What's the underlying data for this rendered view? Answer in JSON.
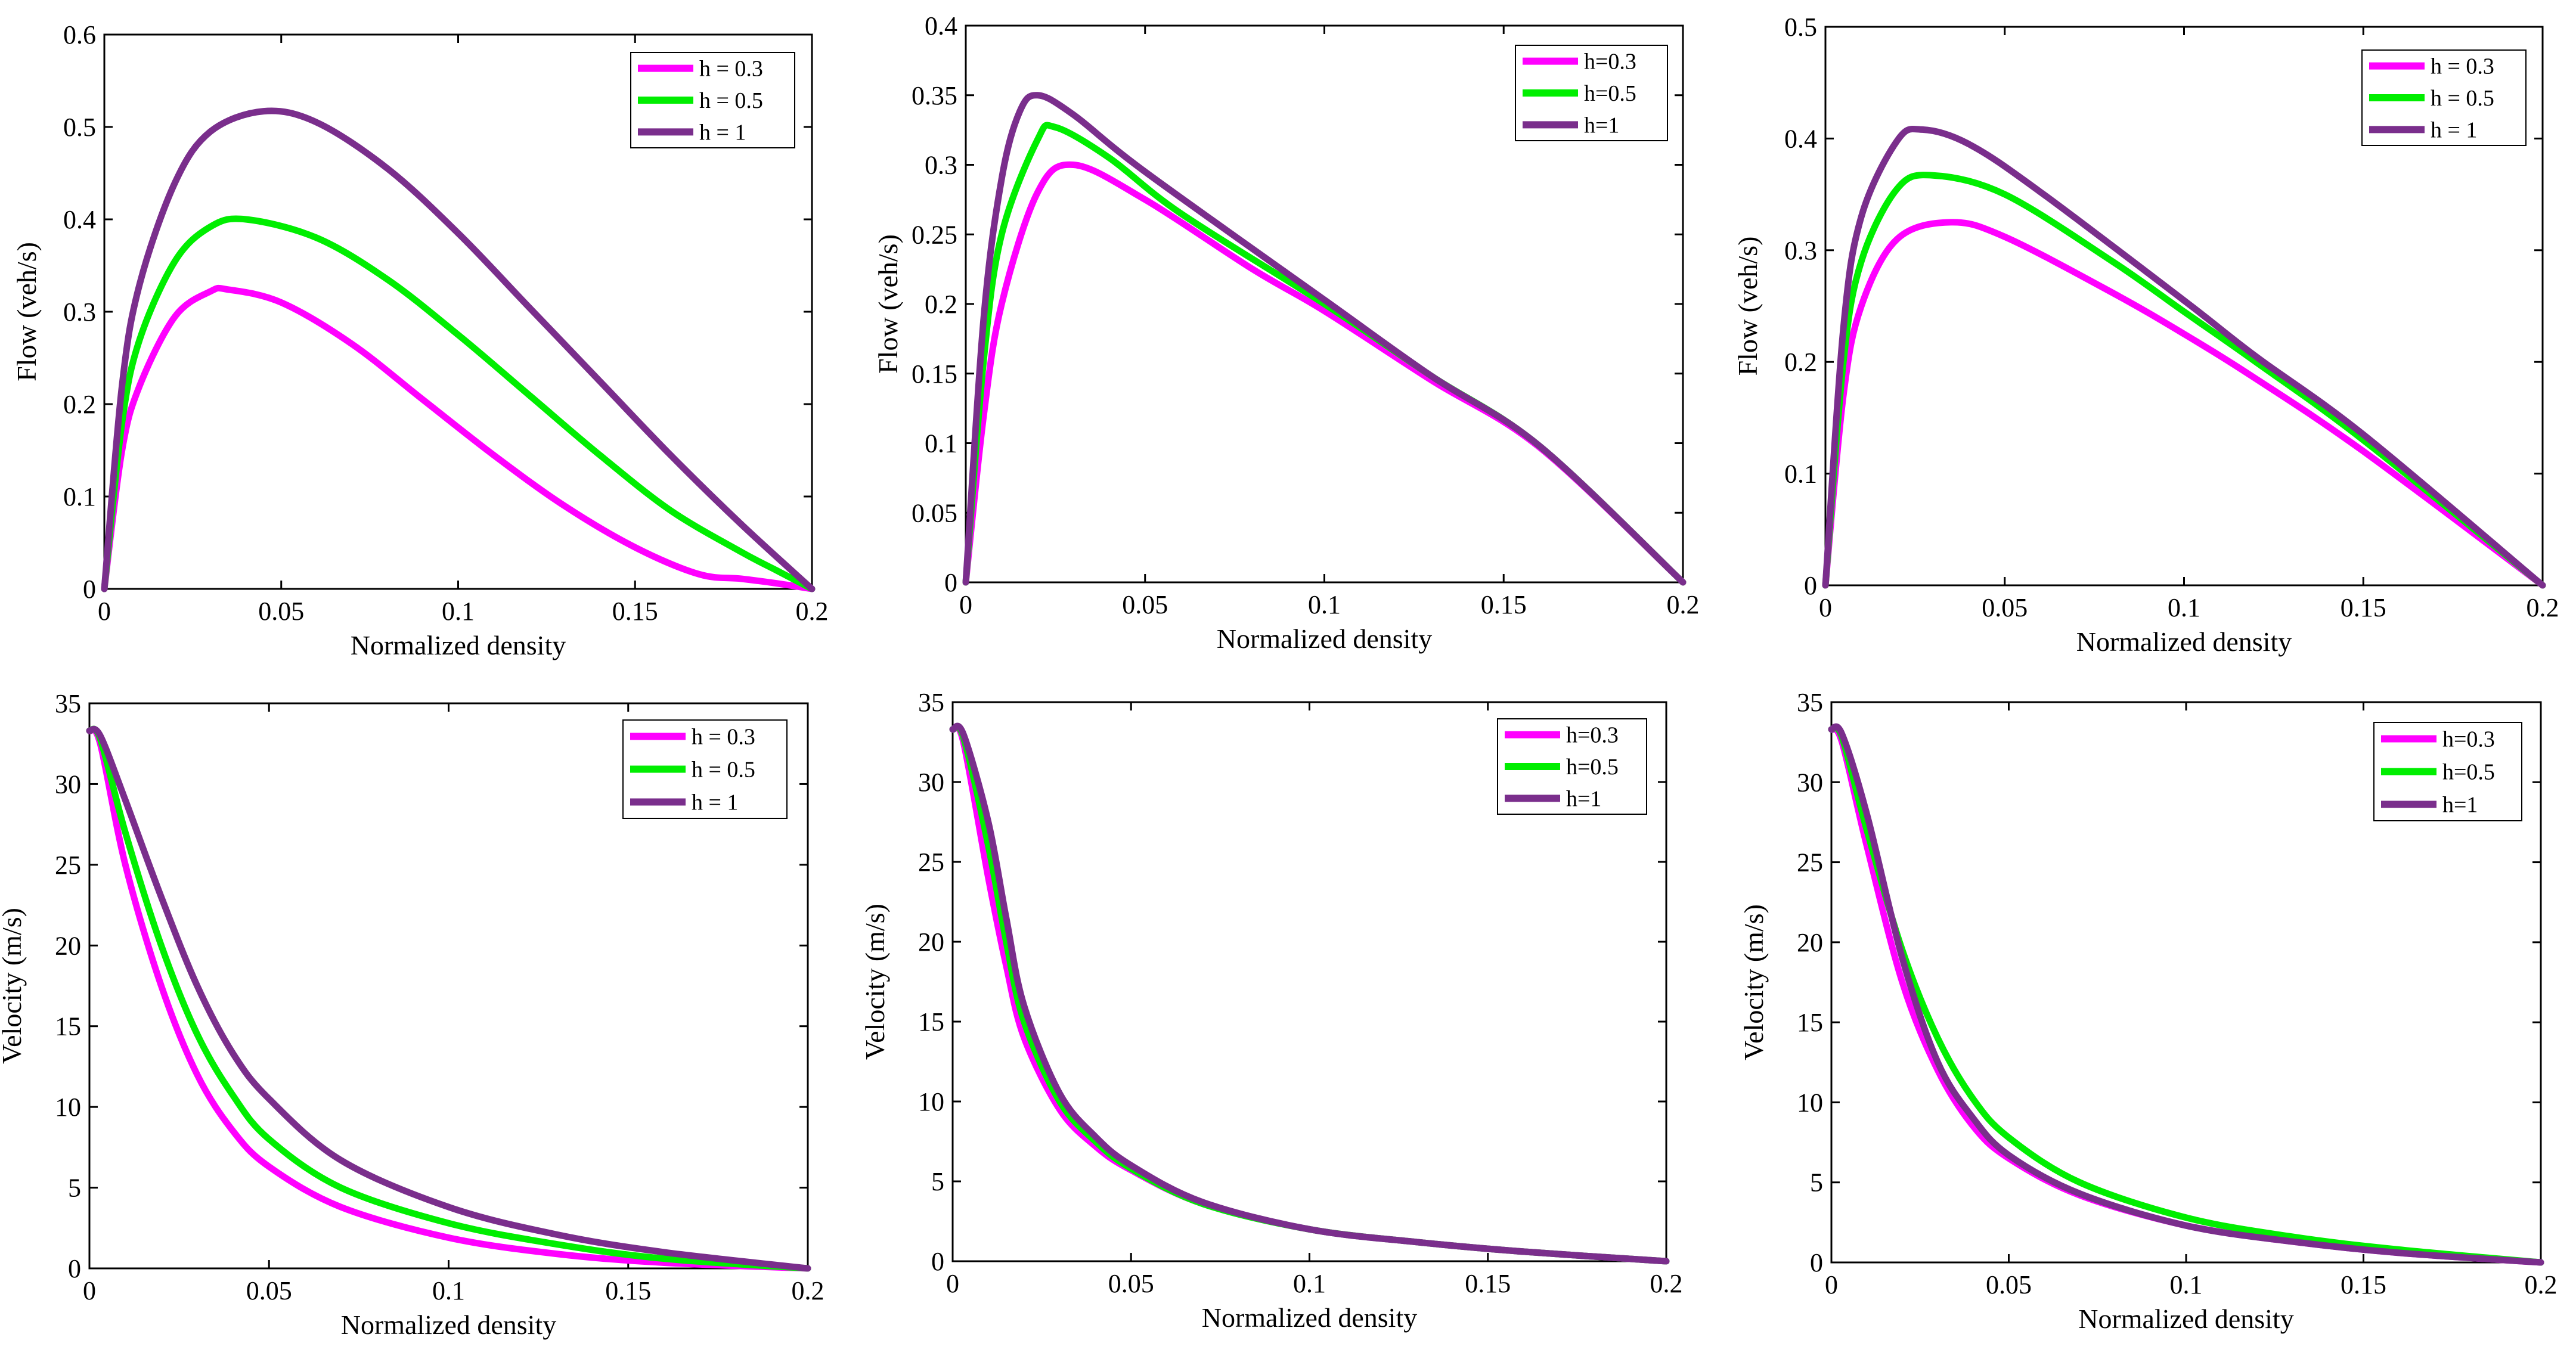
{
  "chart_data": [
    {
      "type": "line",
      "panel": "top-left",
      "title": "",
      "xlabel": "Normalized density",
      "ylabel": "Flow (veh/s)",
      "xlim": [
        0,
        0.2
      ],
      "ylim": [
        0,
        0.6
      ],
      "xticks": [
        "0",
        "0.05",
        "0.1",
        "0.15",
        "0.2"
      ],
      "yticks": [
        "0",
        "0.1",
        "0.2",
        "0.3",
        "0.4",
        "0.5",
        "0.6"
      ],
      "legend_position": "top-right",
      "series": [
        {
          "name": "h = 0.3",
          "color": "#ff00ff",
          "x": [
            0,
            0.005,
            0.01,
            0.02,
            0.03,
            0.035,
            0.05,
            0.07,
            0.09,
            0.11,
            0.13,
            0.15,
            0.168,
            0.18,
            0.19,
            0.2
          ],
          "y": [
            0,
            0.15,
            0.22,
            0.295,
            0.322,
            0.324,
            0.31,
            0.265,
            0.205,
            0.145,
            0.09,
            0.045,
            0.016,
            0.011,
            0.006,
            0
          ]
        },
        {
          "name": "h = 0.5",
          "color": "#00ee00",
          "x": [
            0,
            0.005,
            0.01,
            0.02,
            0.03,
            0.04,
            0.06,
            0.08,
            0.1,
            0.12,
            0.14,
            0.16,
            0.18,
            0.19,
            0.2
          ],
          "y": [
            0,
            0.18,
            0.27,
            0.355,
            0.392,
            0.4,
            0.38,
            0.335,
            0.275,
            0.21,
            0.145,
            0.085,
            0.04,
            0.02,
            0
          ]
        },
        {
          "name": "h = 1",
          "color": "#7a2e8c",
          "x": [
            0,
            0.005,
            0.01,
            0.02,
            0.03,
            0.045,
            0.06,
            0.08,
            0.1,
            0.12,
            0.14,
            0.16,
            0.18,
            0.2
          ],
          "y": [
            0,
            0.22,
            0.33,
            0.44,
            0.495,
            0.517,
            0.505,
            0.455,
            0.385,
            0.305,
            0.225,
            0.145,
            0.07,
            0
          ]
        }
      ]
    },
    {
      "type": "line",
      "panel": "top-middle",
      "title": "",
      "xlabel": "Normalized density",
      "ylabel": "Flow (veh/s)",
      "xlim": [
        0,
        0.2
      ],
      "ylim": [
        0,
        0.4
      ],
      "xticks": [
        "0",
        "0.05",
        "0.1",
        "0.15",
        "0.2"
      ],
      "yticks": [
        "0",
        "0.05",
        "0.1",
        "0.15",
        "0.2",
        "0.25",
        "0.3",
        "0.35",
        "0.4"
      ],
      "legend_position": "top-right",
      "series": [
        {
          "name": "h=0.3",
          "color": "#ff00ff",
          "x": [
            0,
            0.005,
            0.01,
            0.02,
            0.03,
            0.05,
            0.08,
            0.1,
            0.13,
            0.16,
            0.2
          ],
          "y": [
            0,
            0.12,
            0.2,
            0.28,
            0.3,
            0.275,
            0.225,
            0.195,
            0.145,
            0.097,
            0
          ]
        },
        {
          "name": "h=0.5",
          "color": "#00ee00",
          "x": [
            0,
            0.005,
            0.01,
            0.02,
            0.025,
            0.04,
            0.06,
            0.1,
            0.13,
            0.16,
            0.2
          ],
          "y": [
            0,
            0.16,
            0.25,
            0.318,
            0.327,
            0.305,
            0.265,
            0.2,
            0.148,
            0.098,
            0
          ]
        },
        {
          "name": "h=1",
          "color": "#7a2e8c",
          "x": [
            0,
            0.005,
            0.01,
            0.015,
            0.02,
            0.03,
            0.05,
            0.1,
            0.13,
            0.16,
            0.2
          ],
          "y": [
            0,
            0.19,
            0.29,
            0.338,
            0.35,
            0.336,
            0.295,
            0.203,
            0.148,
            0.098,
            0
          ]
        }
      ]
    },
    {
      "type": "line",
      "panel": "top-right",
      "title": "",
      "xlabel": "Normalized density",
      "ylabel": "Flow (veh/s)",
      "xlim": [
        0,
        0.2
      ],
      "ylim": [
        0,
        0.5
      ],
      "xticks": [
        "0",
        "0.05",
        "0.1",
        "0.15",
        "0.2"
      ],
      "yticks": [
        "0",
        "0.1",
        "0.2",
        "0.3",
        "0.4",
        "0.5"
      ],
      "legend_position": "top-right",
      "series": [
        {
          "name": "h = 0.3",
          "color": "#ff00ff",
          "x": [
            0,
            0.005,
            0.01,
            0.02,
            0.035,
            0.05,
            0.08,
            0.1,
            0.12,
            0.15,
            0.2
          ],
          "y": [
            0,
            0.17,
            0.25,
            0.31,
            0.325,
            0.312,
            0.262,
            0.225,
            0.185,
            0.12,
            0
          ]
        },
        {
          "name": "h = 0.5",
          "color": "#00ee00",
          "x": [
            0,
            0.005,
            0.01,
            0.02,
            0.03,
            0.05,
            0.08,
            0.1,
            0.12,
            0.15,
            0.2
          ],
          "y": [
            0,
            0.2,
            0.29,
            0.355,
            0.367,
            0.35,
            0.29,
            0.245,
            0.2,
            0.13,
            0
          ]
        },
        {
          "name": "h = 1",
          "color": "#7a2e8c",
          "x": [
            0,
            0.005,
            0.01,
            0.02,
            0.027,
            0.04,
            0.06,
            0.1,
            0.12,
            0.15,
            0.2
          ],
          "y": [
            0,
            0.23,
            0.33,
            0.398,
            0.408,
            0.395,
            0.352,
            0.255,
            0.205,
            0.135,
            0
          ]
        }
      ]
    },
    {
      "type": "line",
      "panel": "bottom-left",
      "title": "",
      "xlabel": "Normalized density",
      "ylabel": "Velocity (m/s)",
      "xlim": [
        0,
        0.2
      ],
      "ylim": [
        0,
        35
      ],
      "xticks": [
        "0",
        "0.05",
        "0.1",
        "0.15",
        "0.2"
      ],
      "yticks": [
        "0",
        "5",
        "10",
        "15",
        "20",
        "25",
        "30",
        "35"
      ],
      "legend_position": "top-right",
      "series": [
        {
          "name": "h = 0.3",
          "color": "#ff00ff",
          "x": [
            0,
            0.003,
            0.01,
            0.02,
            0.03,
            0.04,
            0.05,
            0.07,
            0.1,
            0.13,
            0.16,
            0.2
          ],
          "y": [
            33.3,
            32.5,
            25,
            17.5,
            12,
            8.5,
            6.3,
            3.8,
            1.9,
            0.9,
            0.35,
            0
          ]
        },
        {
          "name": "h = 0.5",
          "color": "#00ee00",
          "x": [
            0,
            0.003,
            0.01,
            0.02,
            0.03,
            0.04,
            0.05,
            0.07,
            0.1,
            0.13,
            0.16,
            0.2
          ],
          "y": [
            33.3,
            32.8,
            27,
            20,
            14.5,
            10.7,
            8,
            5,
            2.8,
            1.5,
            0.6,
            0
          ]
        },
        {
          "name": "h = 1",
          "color": "#7a2e8c",
          "x": [
            0,
            0.003,
            0.01,
            0.02,
            0.03,
            0.04,
            0.05,
            0.07,
            0.1,
            0.13,
            0.16,
            0.2
          ],
          "y": [
            33.3,
            33,
            29,
            23,
            17.5,
            13.3,
            10.5,
            6.7,
            3.8,
            2.1,
            1,
            0
          ]
        }
      ]
    },
    {
      "type": "line",
      "panel": "bottom-middle",
      "title": "",
      "xlabel": "Normalized density",
      "ylabel": "Velocity (m/s)",
      "xlim": [
        0,
        0.2
      ],
      "ylim": [
        0,
        35
      ],
      "xticks": [
        "0",
        "0.05",
        "0.1",
        "0.15",
        "0.2"
      ],
      "yticks": [
        "0",
        "5",
        "10",
        "15",
        "20",
        "25",
        "30",
        "35"
      ],
      "legend_position": "top-right",
      "series": [
        {
          "name": "h=0.3",
          "color": "#ff00ff",
          "x": [
            0,
            0.003,
            0.01,
            0.015,
            0.02,
            0.03,
            0.04,
            0.05,
            0.07,
            0.1,
            0.13,
            0.16,
            0.2
          ],
          "y": [
            33.3,
            32.5,
            24,
            18.5,
            14,
            9.5,
            7.2,
            5.7,
            3.6,
            2,
            1.2,
            0.6,
            0
          ]
        },
        {
          "name": "h=0.5",
          "color": "#00ee00",
          "x": [
            0,
            0.003,
            0.01,
            0.015,
            0.02,
            0.03,
            0.04,
            0.05,
            0.07,
            0.1,
            0.13,
            0.16,
            0.2
          ],
          "y": [
            33.3,
            32.8,
            26,
            20,
            15,
            10,
            7.5,
            5.8,
            3.6,
            2,
            1.2,
            0.6,
            0
          ]
        },
        {
          "name": "h=1",
          "color": "#7a2e8c",
          "x": [
            0,
            0.003,
            0.01,
            0.015,
            0.02,
            0.03,
            0.04,
            0.05,
            0.07,
            0.1,
            0.13,
            0.16,
            0.2
          ],
          "y": [
            33.3,
            33,
            27.5,
            21.5,
            16,
            10.5,
            7.8,
            6,
            3.7,
            2,
            1.2,
            0.6,
            0
          ]
        }
      ]
    },
    {
      "type": "line",
      "panel": "bottom-right",
      "title": "",
      "xlabel": "Normalized density",
      "ylabel": "Velocity (m/s)",
      "xlim": [
        0,
        0.2
      ],
      "ylim": [
        0,
        35
      ],
      "xticks": [
        "0",
        "0.05",
        "0.1",
        "0.15",
        "0.2"
      ],
      "yticks": [
        "0",
        "5",
        "10",
        "15",
        "20",
        "25",
        "30",
        "35"
      ],
      "legend_position": "top-right",
      "series": [
        {
          "name": "h=0.3",
          "color": "#ff00ff",
          "x": [
            0,
            0.003,
            0.01,
            0.02,
            0.03,
            0.04,
            0.05,
            0.07,
            0.1,
            0.13,
            0.16,
            0.2
          ],
          "y": [
            33.3,
            32.5,
            26,
            17.5,
            12,
            8.5,
            6.5,
            4.2,
            2.3,
            1.3,
            0.6,
            0
          ]
        },
        {
          "name": "h=0.5",
          "color": "#00ee00",
          "x": [
            0,
            0.003,
            0.01,
            0.02,
            0.03,
            0.04,
            0.05,
            0.07,
            0.1,
            0.13,
            0.16,
            0.2
          ],
          "y": [
            33.3,
            32.8,
            27,
            19.5,
            14,
            10.2,
            7.8,
            5,
            2.8,
            1.6,
            0.8,
            0
          ]
        },
        {
          "name": "h=1",
          "color": "#7a2e8c",
          "x": [
            0,
            0.003,
            0.01,
            0.02,
            0.03,
            0.04,
            0.05,
            0.07,
            0.1,
            0.13,
            0.16,
            0.2
          ],
          "y": [
            33.3,
            33,
            28,
            19,
            12.5,
            9,
            6.7,
            4.3,
            2.3,
            1.3,
            0.6,
            0
          ]
        }
      ]
    }
  ]
}
